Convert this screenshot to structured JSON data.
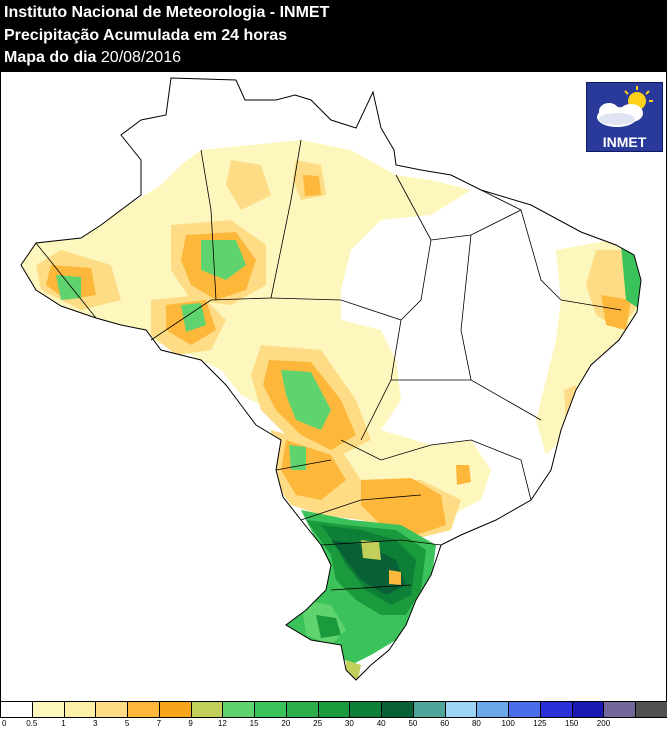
{
  "header": {
    "line1": "Instituto Nacional de Meteorologia - INMET",
    "line2": "Precipitação Acumulada em 24 horas",
    "line3_prefix": "Mapa do dia",
    "line3_date": "20/08/2016"
  },
  "logo": {
    "label": "INMET",
    "icon": "sun-cloud-icon"
  },
  "legend": {
    "unit_levels": [
      "0",
      "0.5",
      "1",
      "3",
      "5",
      "7",
      "9",
      "12",
      "15",
      "20",
      "25",
      "30",
      "40",
      "50",
      "60",
      "80",
      "100",
      "125",
      "150",
      "200"
    ],
    "colors": [
      "#ffffff",
      "#fdf7be",
      "#fdefa5",
      "#fedc86",
      "#fdb73a",
      "#f7a51d",
      "#c2cf5a",
      "#5fd46e",
      "#3cc25b",
      "#2bad4a",
      "#1a9a3c",
      "#0e7f36",
      "#076036",
      "#4fa59a",
      "#9dd4f5",
      "#6aa8ea",
      "#4a6ee9",
      "#2b31d8",
      "#1a1ab3",
      "#74689b",
      "#515151"
    ]
  },
  "colors": {
    "header_bg": "#000000",
    "header_text": "#ffffff",
    "border": "#000000"
  }
}
